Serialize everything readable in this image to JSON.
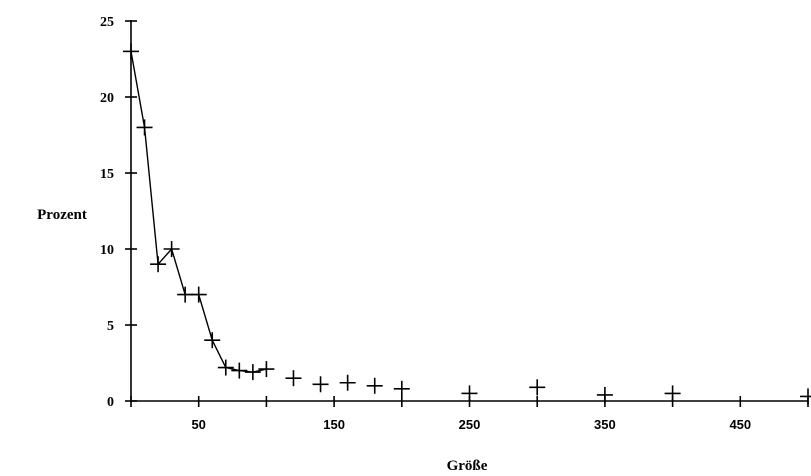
{
  "chart_data": {
    "type": "line",
    "title": "",
    "xlabel": "Größe",
    "ylabel": "Prozent",
    "xlim": [
      0,
      500
    ],
    "ylim": [
      0,
      25
    ],
    "grid": false,
    "x_tick_labels": [
      "50",
      "150",
      "250",
      "350",
      "450"
    ],
    "y_tick_labels": [
      "0",
      "5",
      "10",
      "15",
      "20",
      "25"
    ],
    "marker": "plus",
    "series": [
      {
        "x": [
          0,
          10,
          20,
          30,
          40,
          50,
          60,
          70,
          80,
          90,
          100,
          120,
          140,
          160,
          180,
          200,
          250,
          300,
          350,
          400,
          500
        ],
        "y": [
          23,
          18,
          9,
          10,
          7,
          7,
          4,
          2.2,
          2,
          1.9,
          2.1,
          1.5,
          1.1,
          1.2,
          1,
          0.8,
          0.5,
          0.9,
          0.4,
          0.5,
          0.3
        ]
      }
    ]
  }
}
